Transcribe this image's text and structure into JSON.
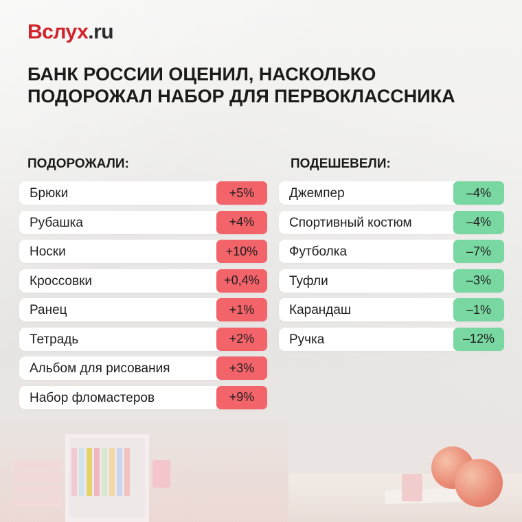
{
  "brand": {
    "name": "Вслух",
    "tld": ".ru"
  },
  "title_line1": "Банк России оценил, насколько",
  "title_line2": "подорожал набор для первоклассника",
  "colors": {
    "brand_red": "#d3222a",
    "increase": "#f2636a",
    "decrease": "#79d7a1"
  },
  "increased": {
    "heading": "ПОДОРОЖАЛИ:",
    "items": [
      {
        "name": "Брюки",
        "change": "+5%"
      },
      {
        "name": "Рубашка",
        "change": "+4%"
      },
      {
        "name": "Носки",
        "change": "+10%"
      },
      {
        "name": "Кроссовки",
        "change": "+0,4%"
      },
      {
        "name": "Ранец",
        "change": "+1%"
      },
      {
        "name": "Тетрадь",
        "change": "+2%"
      },
      {
        "name": "Альбом для рисования",
        "change": "+3%"
      },
      {
        "name": "Набор фломастеров",
        "change": "+9%"
      }
    ]
  },
  "decreased": {
    "heading": "ПОДЕШЕВЕЛИ:",
    "items": [
      {
        "name": "Джемпер",
        "change": "–4%"
      },
      {
        "name": "Спортивный костюм",
        "change": "–4%"
      },
      {
        "name": "Футболка",
        "change": "–7%"
      },
      {
        "name": "Туфли",
        "change": "–3%"
      },
      {
        "name": "Карандаш",
        "change": "–1%"
      },
      {
        "name": "Ручка",
        "change": "–12%"
      }
    ]
  }
}
